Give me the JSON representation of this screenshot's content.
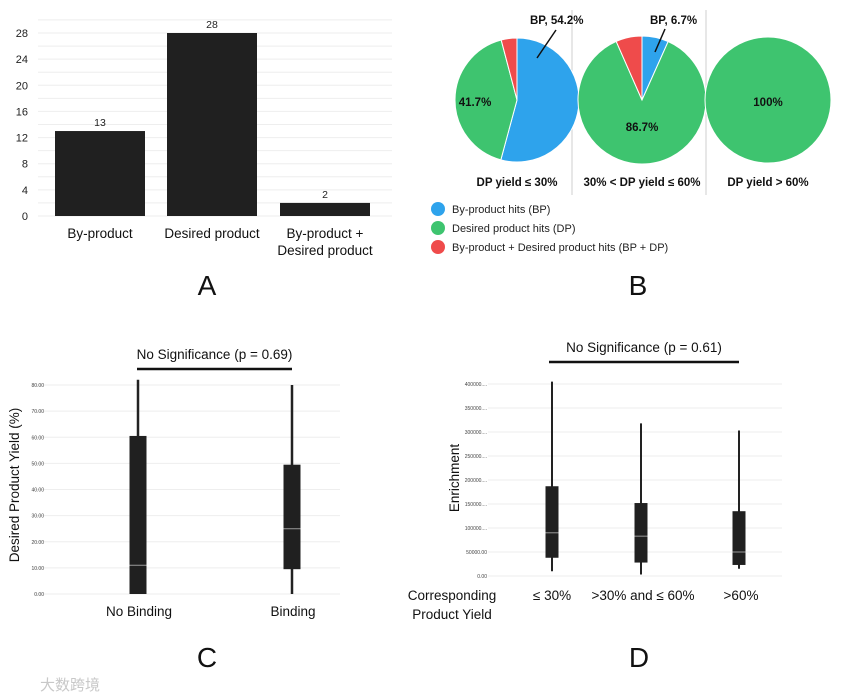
{
  "colors": {
    "bar": "#202020",
    "bp": "#2ea3ec",
    "dp": "#3ec46f",
    "both": "#ef4b4b",
    "median": "#9a9a9a"
  },
  "watermark": "大数跨境",
  "chart_data": [
    {
      "panel": "A",
      "type": "bar",
      "categories": [
        "By-product",
        "Desired product",
        "By-product + Desired product"
      ],
      "category_lines": [
        [
          "By-product"
        ],
        [
          "Desired product"
        ],
        [
          "By-product +",
          "Desired product"
        ]
      ],
      "values": [
        13,
        28,
        2
      ],
      "data_labels": [
        "13",
        "28",
        "2"
      ],
      "yticks": [
        "0",
        "4",
        "8",
        "12",
        "16",
        "20",
        "24",
        "28"
      ],
      "ylim": [
        0,
        30
      ],
      "grid": true
    },
    {
      "panel": "B",
      "type": "pie",
      "pies": [
        {
          "title": "DP yield ≤ 30%",
          "slices": [
            54.2,
            41.7,
            4.1
          ],
          "labels": {
            "inside": "41.7%",
            "callout": "BP, 54.2%"
          }
        },
        {
          "title": "30% < DP yield ≤ 60%",
          "slices": [
            6.7,
            86.7,
            6.6
          ],
          "labels": {
            "inside": "86.7%",
            "callout": "BP, 6.7%"
          }
        },
        {
          "title": "DP yield > 60%",
          "slices": [
            0,
            100,
            0
          ],
          "labels": {
            "inside": "100%"
          }
        }
      ],
      "legend": [
        "By-product hits (BP)",
        "Desired product hits (DP)",
        "By-product + Desired product hits (BP + DP)"
      ],
      "legend_placement": "bottom"
    },
    {
      "panel": "C",
      "type": "box",
      "title": "No Significance (p = 0.69)",
      "ylabel": "Desired Product Yield (%)",
      "categories": [
        "No Binding",
        "Binding"
      ],
      "boxes": [
        {
          "min": 0,
          "q1": 0,
          "median": 11,
          "q3": 60.5,
          "max": 82
        },
        {
          "min": 0,
          "q1": 9.5,
          "median": 25,
          "q3": 49.5,
          "max": 80
        }
      ],
      "yticks": [
        "0.00",
        "10.00",
        "20.00",
        "30.00",
        "40.00",
        "50.00",
        "60.00",
        "70.00",
        "80.00"
      ],
      "ylim": [
        0,
        80
      ],
      "grid": true
    },
    {
      "panel": "D",
      "type": "box",
      "title": "No Significance (p = 0.61)",
      "ylabel": "Enrichment",
      "xlabel": [
        "Corresponding",
        "Product Yield"
      ],
      "categories": [
        "≤ 30%",
        ">30% and ≤ 60%",
        ">60%"
      ],
      "boxes": [
        {
          "min": 10000,
          "q1": 38000,
          "median": 90000,
          "q3": 187000,
          "max": 405000
        },
        {
          "min": 3000,
          "q1": 28000,
          "median": 83000,
          "q3": 152000,
          "max": 318000
        },
        {
          "min": 15000,
          "q1": 23000,
          "median": 50000,
          "q3": 135000,
          "max": 303000
        }
      ],
      "yticks": [
        "0.00",
        "50000.00",
        "100000....",
        "150000....",
        "200000....",
        "250000....",
        "300000....",
        "350000....",
        "400000...."
      ],
      "ylim": [
        0,
        400000
      ],
      "grid": true
    }
  ]
}
